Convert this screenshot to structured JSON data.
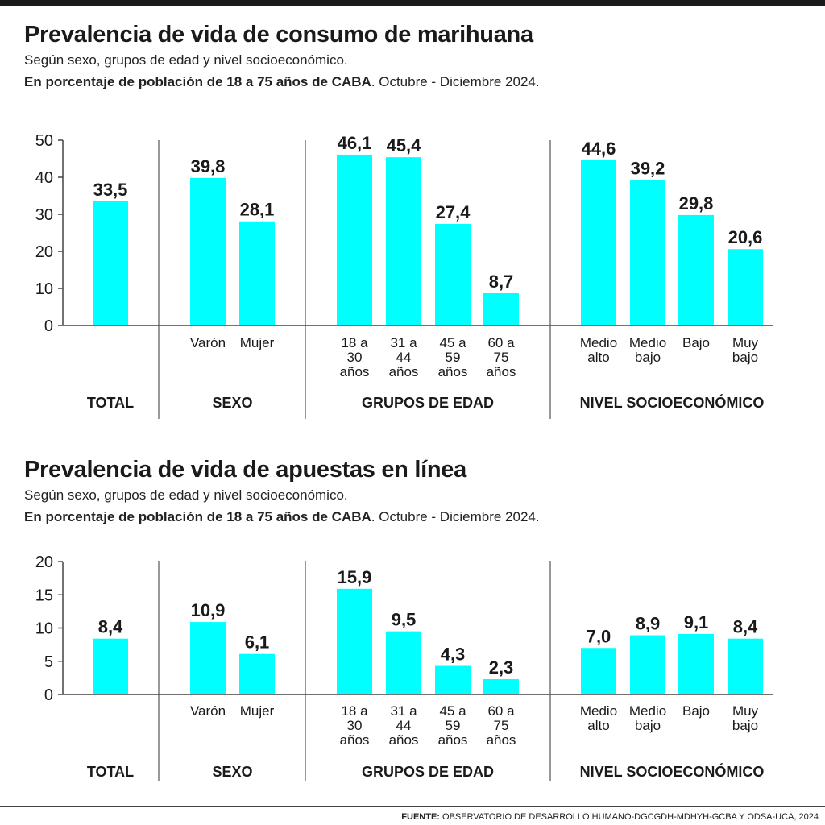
{
  "source": {
    "label": "FUENTE:",
    "text": " OBSERVATORIO DE DESARROLLO HUMANO-DGCGDH-MDHYH-GCBA Y ODSA-UCA, 2024"
  },
  "charts": [
    {
      "title": "Prevalencia de vida de consumo de marihuana",
      "subtitle": "Según sexo, grupos de edad y nivel socioeconómico.",
      "units_bold": "En porcentaje de población de 18 a 75 años de CABA",
      "units_rest": ". Octubre - Diciembre 2024."
    },
    {
      "title": "Prevalencia de vida de apuestas en línea",
      "subtitle": "Según sexo, grupos de edad y nivel socioeconómico.",
      "units_bold": "En porcentaje de población de 18 a 75 años de CABA",
      "units_rest": ". Octubre - Diciembre 2024."
    }
  ],
  "chart_data": [
    {
      "type": "bar",
      "title": "Prevalencia de vida de consumo de marihuana",
      "bar_color": "#00ffff",
      "ylim": [
        0,
        50
      ],
      "yticks": [
        0,
        10,
        20,
        30,
        40,
        50
      ],
      "groups": [
        {
          "name": "TOTAL",
          "bars": [
            {
              "category": "",
              "value": 33.5,
              "label": "33,5"
            }
          ]
        },
        {
          "name": "SEXO",
          "bars": [
            {
              "category": "Varón",
              "value": 39.8,
              "label": "39,8"
            },
            {
              "category": "Mujer",
              "value": 28.1,
              "label": "28,1"
            }
          ]
        },
        {
          "name": "GRUPOS DE EDAD",
          "bars": [
            {
              "category": "18 a\n30\naños",
              "value": 46.1,
              "label": "46,1"
            },
            {
              "category": "31 a\n44\naños",
              "value": 45.4,
              "label": "45,4"
            },
            {
              "category": "45 a\n59\naños",
              "value": 27.4,
              "label": "27,4"
            },
            {
              "category": "60 a\n75\naños",
              "value": 8.7,
              "label": "8,7"
            }
          ]
        },
        {
          "name": "NIVEL SOCIOECONÓMICO",
          "bars": [
            {
              "category": "Medio\nalto",
              "value": 44.6,
              "label": "44,6"
            },
            {
              "category": "Medio\nbajo",
              "value": 39.2,
              "label": "39,2"
            },
            {
              "category": "Bajo",
              "value": 29.8,
              "label": "29,8"
            },
            {
              "category": "Muy\nbajo",
              "value": 20.6,
              "label": "20,6"
            }
          ]
        }
      ]
    },
    {
      "type": "bar",
      "title": "Prevalencia de vida de apuestas en línea",
      "bar_color": "#00ffff",
      "ylim": [
        0,
        20
      ],
      "yticks": [
        0,
        5,
        10,
        15,
        20
      ],
      "groups": [
        {
          "name": "TOTAL",
          "bars": [
            {
              "category": "",
              "value": 8.4,
              "label": "8,4"
            }
          ]
        },
        {
          "name": "SEXO",
          "bars": [
            {
              "category": "Varón",
              "value": 10.9,
              "label": "10,9"
            },
            {
              "category": "Mujer",
              "value": 6.1,
              "label": "6,1"
            }
          ]
        },
        {
          "name": "GRUPOS DE EDAD",
          "bars": [
            {
              "category": "18 a\n30\naños",
              "value": 15.9,
              "label": "15,9"
            },
            {
              "category": "31 a\n44\naños",
              "value": 9.5,
              "label": "9,5"
            },
            {
              "category": "45 a\n59\naños",
              "value": 4.3,
              "label": "4,3"
            },
            {
              "category": "60 a\n75\naños",
              "value": 2.3,
              "label": "2,3"
            }
          ]
        },
        {
          "name": "NIVEL SOCIOECONÓMICO",
          "bars": [
            {
              "category": "Medio\nalto",
              "value": 7.0,
              "label": "7,0"
            },
            {
              "category": "Medio\nbajo",
              "value": 8.9,
              "label": "8,9"
            },
            {
              "category": "Bajo",
              "value": 9.1,
              "label": "9,1"
            },
            {
              "category": "Muy\nbajo",
              "value": 8.4,
              "label": "8,4"
            }
          ]
        }
      ]
    }
  ]
}
